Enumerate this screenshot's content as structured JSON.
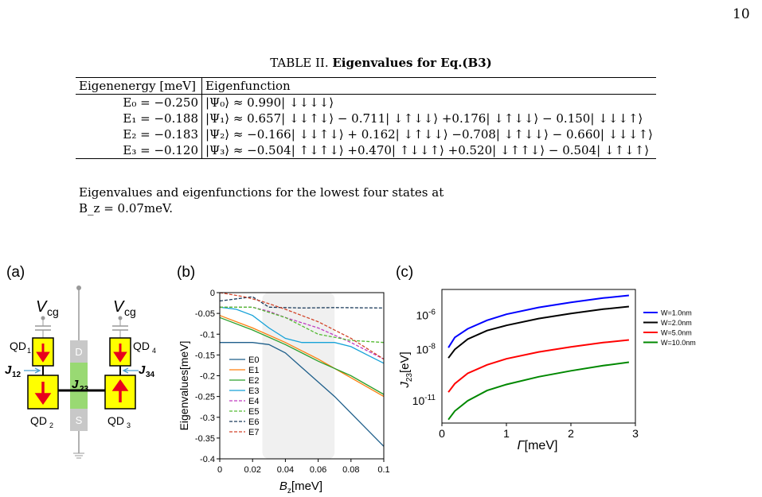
{
  "page_number": "10",
  "table": {
    "caption_prefix": "TABLE II.",
    "caption_bold": "Eigenvalues for Eq.(B3)",
    "headers": [
      "Eigenenergy [meV]",
      "Eigenfunction"
    ],
    "rows": [
      {
        "energy": "E₀ = −0.250",
        "function": "|Ψ₀⟩ ≈ 0.990| ↓↓↓↓⟩"
      },
      {
        "energy": "E₁ = −0.188",
        "function": "|Ψ₁⟩ ≈ 0.657| ↓↓↑↓⟩ − 0.711| ↓↑↓↓⟩ +0.176| ↓↑↓↓⟩ − 0.150| ↓↓↓↑⟩"
      },
      {
        "energy": "E₂ = −0.183",
        "function": "|Ψ₂⟩ ≈ −0.166| ↓↓↑↓⟩ + 0.162| ↓↑↓↓⟩ −0.708| ↓↑↓↓⟩ − 0.660| ↓↓↓↑⟩"
      },
      {
        "energy": "E₃ = −0.120",
        "function": "|Ψ₃⟩ ≈ −0.504| ↑↓↑↓⟩ +0.470| ↑↓↓↑⟩ +0.520| ↓↑↑↓⟩ − 0.504| ↓↑↓↑⟩"
      }
    ],
    "footnote_line1": "Eigenvalues and eigenfunctions for the lowest four states at",
    "footnote_line2": "B_z = 0.07meV."
  },
  "panel_a": {
    "label": "(a)",
    "vcg_left": "V",
    "vcg_right": "V",
    "vcg_sub": "cg",
    "qd1": "QD",
    "qd1_sub": "1",
    "qd2": "QD",
    "qd2_sub": "2",
    "qd3": "QD",
    "qd3_sub": "3",
    "qd4": "QD",
    "qd4_sub": "4",
    "j12": "J",
    "j12_sub": "12",
    "j23": "J",
    "j23_sub": "23",
    "j34": "J",
    "j34_sub": "34",
    "drain": "D",
    "source": "S",
    "colors": {
      "dot": "#ffff00",
      "arrow": "#e8001c",
      "channel": "#99d973",
      "gate": "#c8c8c8"
    }
  },
  "chart_data": [
    {
      "panel": "(b)",
      "type": "line",
      "xlabel": "B_z[meV]",
      "ylabel": "Eigenvalues[meV]",
      "xlim": [
        0,
        0.1
      ],
      "ylim": [
        -0.4,
        0.0
      ],
      "xticks": [
        "0",
        "0.02",
        "0.04",
        "0.06",
        "0.08",
        "0.1"
      ],
      "yticks": [
        "0",
        "-0.05",
        "-0.1",
        "-0.15",
        "-0.2",
        "-0.25",
        "-0.3",
        "-0.35",
        "-0.4"
      ],
      "shaded_region": [
        0.026,
        0.07
      ],
      "legend_position": "lower-left",
      "series": [
        {
          "name": "E0",
          "style": "solid",
          "color": "#1f5f8b",
          "x": [
            0,
            0.02,
            0.03,
            0.04,
            0.05,
            0.07,
            0.1
          ],
          "y": [
            -0.12,
            -0.12,
            -0.125,
            -0.145,
            -0.18,
            -0.25,
            -0.37
          ]
        },
        {
          "name": "E1",
          "style": "solid",
          "color": "#ff7f0e",
          "x": [
            0,
            0.02,
            0.04,
            0.06,
            0.08,
            0.1
          ],
          "y": [
            -0.055,
            -0.085,
            -0.12,
            -0.16,
            -0.205,
            -0.25
          ]
        },
        {
          "name": "E2",
          "style": "solid",
          "color": "#2ca02c",
          "x": [
            0,
            0.02,
            0.04,
            0.06,
            0.08,
            0.1
          ],
          "y": [
            -0.06,
            -0.09,
            -0.125,
            -0.165,
            -0.2,
            -0.245
          ]
        },
        {
          "name": "E3",
          "style": "solid",
          "color": "#17a2d8",
          "x": [
            0,
            0.01,
            0.02,
            0.03,
            0.04,
            0.05,
            0.06,
            0.07,
            0.08,
            0.09,
            0.1
          ],
          "y": [
            -0.035,
            -0.04,
            -0.055,
            -0.085,
            -0.11,
            -0.12,
            -0.12,
            -0.12,
            -0.13,
            -0.15,
            -0.17
          ]
        },
        {
          "name": "E4",
          "style": "dashed",
          "color": "#c03cc0",
          "x": [
            0,
            0.02,
            0.03,
            0.04,
            0.06,
            0.08,
            0.1
          ],
          "y": [
            -0.035,
            -0.035,
            -0.045,
            -0.06,
            -0.085,
            -0.12,
            -0.16
          ]
        },
        {
          "name": "E5",
          "style": "dashed",
          "color": "#55bb33",
          "x": [
            0,
            0.02,
            0.04,
            0.06,
            0.08,
            0.1
          ],
          "y": [
            -0.035,
            -0.035,
            -0.06,
            -0.1,
            -0.115,
            -0.12
          ]
        },
        {
          "name": "E6",
          "style": "dashed",
          "color": "#1a3a5a",
          "x": [
            0,
            0.02,
            0.03,
            0.05,
            0.07,
            0.1
          ],
          "y": [
            -0.02,
            -0.01,
            -0.035,
            -0.037,
            -0.036,
            -0.037
          ]
        },
        {
          "name": "E7",
          "style": "dashed",
          "color": "#d2452a",
          "x": [
            0,
            0.015,
            0.025,
            0.04,
            0.06,
            0.08,
            0.1
          ],
          "y": [
            0.0,
            -0.01,
            -0.02,
            -0.04,
            -0.07,
            -0.11,
            -0.16
          ]
        }
      ]
    },
    {
      "panel": "(c)",
      "type": "line",
      "xlabel": "Γ[meV]",
      "ylabel": "J_23[eV]",
      "xlim": [
        0,
        3
      ],
      "yscale": "log",
      "ylim_log10": [
        -12.3,
        -4.5
      ],
      "xticks": [
        "0",
        "1",
        "2",
        "3"
      ],
      "yticks": [
        {
          "base": "10",
          "exp": "-6",
          "log": -6
        },
        {
          "base": "10",
          "exp": "-8",
          "log": -8
        },
        {
          "base": "10",
          "exp": "-11",
          "log": -11
        }
      ],
      "legend_position": "outside-right",
      "series": [
        {
          "name": "W=1.0nm",
          "color": "#0000ff",
          "x": [
            0.1,
            0.2,
            0.4,
            0.7,
            1.0,
            1.5,
            2.0,
            2.5,
            2.9
          ],
          "log10_y": [
            -7.9,
            -7.3,
            -6.8,
            -6.3,
            -5.95,
            -5.55,
            -5.25,
            -5.0,
            -4.85
          ]
        },
        {
          "name": "W=2.0nm",
          "color": "#000000",
          "x": [
            0.1,
            0.2,
            0.4,
            0.7,
            1.0,
            1.5,
            2.0,
            2.5,
            2.9
          ],
          "log10_y": [
            -8.5,
            -8.0,
            -7.4,
            -6.9,
            -6.6,
            -6.2,
            -5.9,
            -5.65,
            -5.5
          ]
        },
        {
          "name": "W=5.0nm",
          "color": "#ff0000",
          "x": [
            0.1,
            0.2,
            0.4,
            0.7,
            1.0,
            1.5,
            2.0,
            2.5,
            2.9
          ],
          "log10_y": [
            -10.5,
            -10.0,
            -9.4,
            -8.9,
            -8.55,
            -8.15,
            -7.85,
            -7.6,
            -7.45
          ]
        },
        {
          "name": "W=10.0nm",
          "color": "#008800",
          "x": [
            0.1,
            0.2,
            0.4,
            0.7,
            1.0,
            1.5,
            2.0,
            2.5,
            2.9
          ],
          "log10_y": [
            -12.1,
            -11.6,
            -11.0,
            -10.4,
            -10.05,
            -9.6,
            -9.25,
            -8.95,
            -8.75
          ]
        }
      ]
    }
  ]
}
